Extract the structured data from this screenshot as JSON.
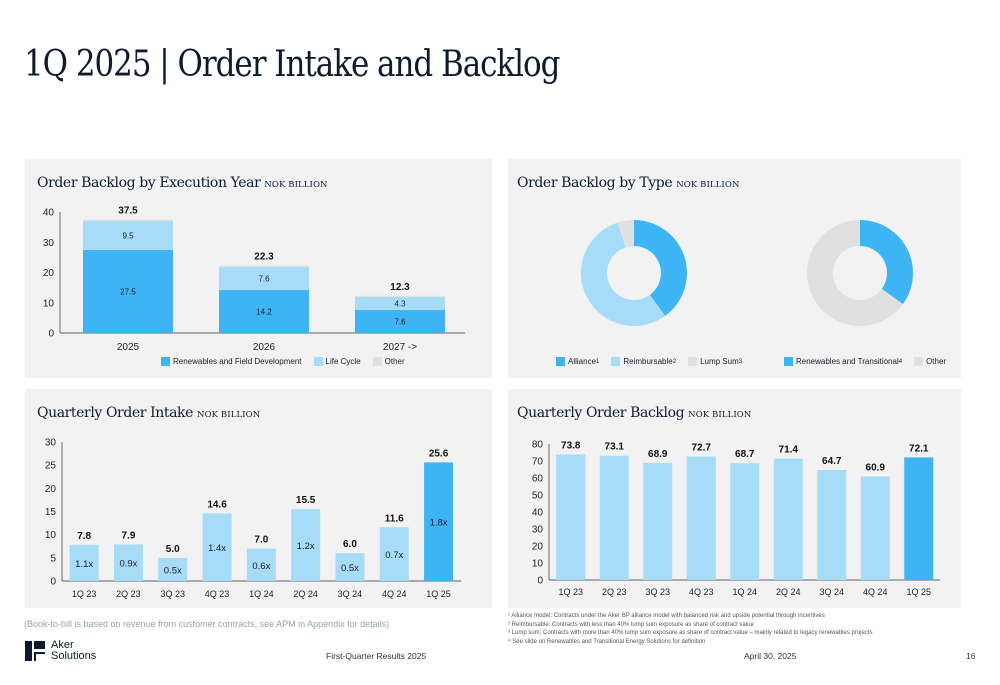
{
  "page": {
    "title": "1Q 2025 | Order Intake and Backlog",
    "note": "(Book-to-bill is based on revenue from customer contracts, see APM in Appendix for details)",
    "footnotes": [
      "¹ Alliance model: Contracts under the Aker BP alliance model with balanced risk and upside potential through incentives",
      "² Reimbursable: Contracts with less than 40% lump sum exposure as share of contract value",
      "³ Lump sum: Contracts with more than 40% lump sum exposure as share of contract value – mainly related to legacy renewables projects",
      "⁴ See slide on Renewables and Transitional Energy Solutions for definition"
    ],
    "footer": {
      "logo_line1": "Aker",
      "logo_line2": "Solutions",
      "center": "First-Quarter Results 2025",
      "date": "April 30, 2025",
      "page_number": "16"
    }
  },
  "colors": {
    "blue": "#3db5f5",
    "light_blue": "#a6dcf8",
    "grey": "#e0e0e0",
    "panel_bg": "#f2f2f2",
    "navy": "#0d1b2e"
  },
  "panels": {
    "backlog_year": {
      "title": "Order Backlog by Execution Year",
      "unit": "NOK BILLION",
      "legend": [
        "Renewables and Field Development",
        "Life Cycle",
        "Other"
      ]
    },
    "backlog_type": {
      "title": "Order Backlog by Type",
      "unit": "NOK BILLION",
      "legend_left": [
        {
          "label": "Alliance",
          "sup": "1"
        },
        {
          "label": "Reimbursable",
          "sup": "2"
        },
        {
          "label": "Lump Sum",
          "sup": "3"
        }
      ],
      "legend_right": [
        {
          "label": "Renewables and Transitional",
          "sup": "4"
        },
        {
          "label": "Other",
          "sup": ""
        }
      ]
    },
    "quarterly_intake": {
      "title": "Quarterly Order Intake",
      "unit": "NOK BILLION"
    },
    "quarterly_backlog": {
      "title": "Quarterly Order Backlog",
      "unit": "NOK BILLION"
    }
  },
  "chart_data": [
    {
      "type": "bar",
      "stacked": true,
      "title": "Order Backlog by Execution Year",
      "categories": [
        "2025",
        "2026",
        "2027 ->"
      ],
      "series": [
        {
          "name": "Renewables and Field Development",
          "values": [
            27.5,
            14.2,
            7.6
          ]
        },
        {
          "name": "Life Cycle",
          "values": [
            9.5,
            7.6,
            4.3
          ]
        },
        {
          "name": "Other",
          "values": [
            0.5,
            0.5,
            0.4
          ]
        }
      ],
      "totals": [
        "37.5",
        "22.3",
        "12.3"
      ],
      "seg_labels": [
        [
          "27.5",
          "9.5"
        ],
        [
          "14.2",
          "7.6"
        ],
        [
          "7.6",
          "4.3"
        ]
      ],
      "yticks": [
        0,
        10,
        20,
        30,
        40
      ],
      "ylim": [
        0,
        40
      ],
      "legend": "bottom"
    },
    {
      "type": "pie",
      "donut": true,
      "title": "Order Backlog by Type",
      "slices": [
        {
          "name": "Alliance",
          "value": 40
        },
        {
          "name": "Reimbursable",
          "value": 55
        },
        {
          "name": "Lump Sum",
          "value": 5
        }
      ]
    },
    {
      "type": "pie",
      "donut": true,
      "title": "Order Backlog by Type",
      "slices": [
        {
          "name": "Renewables and Transitional",
          "value": 35
        },
        {
          "name": "Other",
          "value": 65
        }
      ]
    },
    {
      "type": "bar",
      "title": "Quarterly Order Intake",
      "categories": [
        "1Q 23",
        "2Q 23",
        "3Q 23",
        "4Q 23",
        "1Q 24",
        "2Q 24",
        "3Q 24",
        "4Q 24",
        "1Q 25"
      ],
      "values": [
        7.8,
        7.9,
        5.0,
        14.6,
        7.0,
        15.5,
        6.0,
        11.6,
        25.6
      ],
      "value_labels": [
        "7.8",
        "7.9",
        "5.0",
        "14.6",
        "7.0",
        "15.5",
        "6.0",
        "11.6",
        "25.6"
      ],
      "book_to_bill": [
        "1.1x",
        "0.9x",
        "0.5x",
        "1.4x",
        "0.6x",
        "1.2x",
        "0.5x",
        "0.7x",
        "1.8x"
      ],
      "highlight_last": true,
      "yticks": [
        0,
        5,
        10,
        15,
        20,
        25,
        30
      ],
      "ylim": [
        0,
        30
      ]
    },
    {
      "type": "bar",
      "title": "Quarterly Order Backlog",
      "categories": [
        "1Q 23",
        "2Q 23",
        "3Q 23",
        "4Q 23",
        "1Q 24",
        "2Q 24",
        "3Q 24",
        "4Q 24",
        "1Q 25"
      ],
      "values": [
        73.8,
        73.1,
        68.9,
        72.7,
        68.7,
        71.4,
        64.7,
        60.9,
        72.1
      ],
      "value_labels": [
        "73.8",
        "73.1",
        "68.9",
        "72.7",
        "68.7",
        "71.4",
        "64.7",
        "60.9",
        "72.1"
      ],
      "highlight_last": true,
      "yticks": [
        0,
        10,
        20,
        30,
        40,
        50,
        60,
        70,
        80
      ],
      "ylim": [
        0,
        80
      ]
    }
  ]
}
